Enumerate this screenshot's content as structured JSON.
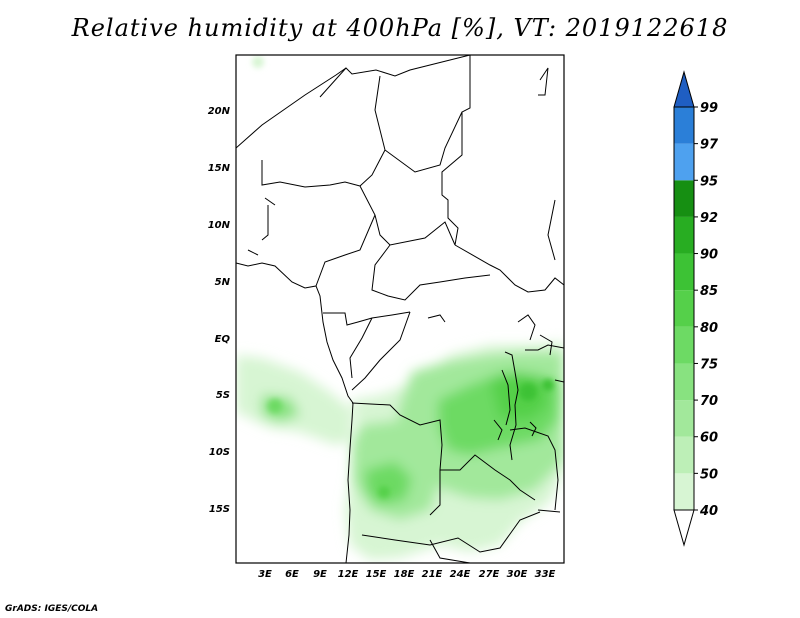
{
  "title": "Relative humidity at 400hPa [%], VT: 2019122618",
  "credit": "GrADS: IGES/COLA",
  "lat_labels": [
    "20N",
    "15N",
    "10N",
    "5N",
    "EQ",
    "5S",
    "10S",
    "15S"
  ],
  "lon_labels": [
    "3E",
    "6E",
    "9E",
    "12E",
    "15E",
    "18E",
    "21E",
    "24E",
    "27E",
    "30E",
    "33E"
  ],
  "colorbar": {
    "labels": [
      "40",
      "50",
      "60",
      "70",
      "75",
      "80",
      "85",
      "90",
      "92",
      "95",
      "97",
      "99"
    ],
    "colors": [
      "#f0fbef",
      "#d7f5d3",
      "#bdefb7",
      "#a2e89b",
      "#88e280",
      "#6dda64",
      "#55d04a",
      "#3dc235",
      "#28ad22",
      "#168f12",
      "#4ea1ef",
      "#2b7fd8",
      "#1f5ec2"
    ]
  }
}
